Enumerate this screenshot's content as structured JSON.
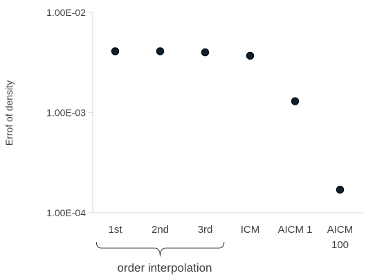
{
  "chart_data": {
    "type": "scatter",
    "ylabel": "Errof of density",
    "yscale": "log",
    "ylim": [
      0.0001,
      0.01
    ],
    "y_ticks": [
      "1.00E-04",
      "1.00E-03",
      "1.00E-02"
    ],
    "categories": [
      [
        "1st"
      ],
      [
        "2nd"
      ],
      [
        "3rd"
      ],
      [
        "ICM"
      ],
      [
        "AICM 1"
      ],
      [
        "AICM",
        "100"
      ]
    ],
    "values": [
      0.0041,
      0.0041,
      0.004,
      0.0037,
      0.0013,
      0.00017
    ],
    "group_label": "order interpolation",
    "group_categories": [
      0,
      2
    ],
    "grid": false,
    "legend": "none",
    "marker_color": "#0b1f2e",
    "axis_color": "#d9d9d9",
    "text_color": "#404040"
  }
}
